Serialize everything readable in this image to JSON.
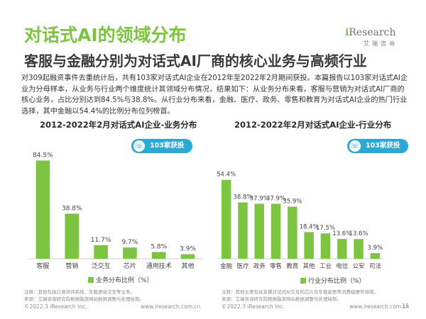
{
  "header": {
    "title": "对话式AI的领域分布",
    "subtitle": "客服与金融分别为对话式AI厂商的核心业务与高频行业",
    "logo_brand": "iResearch",
    "logo_sub": "艾瑞咨询"
  },
  "intro": "对309起融资事件去重统计后，共有103家对话式AI企业在2012年至2022年2月期间获投。本篇报告以103家对话式AI企业为分母样本，从业务与行业两个维度统计其领域分布情况，结果如下：从业务分布来看，客服与营销为对话式AI厂商的核心业务，占比分别达到84.5%与38.8%。从行业分布来看，金融、医疗、政务、零售和教育为对话式AI企业的热门行业选择，其中金融以54.4%的比例分布位列榜首。",
  "badge_label": "103家获投",
  "colors": {
    "accent": "#7dc540",
    "badge": "#2aa9d6"
  },
  "chart_data": [
    {
      "type": "bar",
      "title": "2012-2022年2月对话式AI企业-业务分布",
      "categories": [
        "客服",
        "营销",
        "泛交互",
        "芯片",
        "通用技术",
        "其他"
      ],
      "values": [
        84.5,
        38.8,
        11.7,
        9.7,
        5.8,
        3.9
      ],
      "value_labels": [
        "84.5%",
        "38.8%",
        "11.7%",
        "9.7%",
        "5.8%",
        "3.9%"
      ],
      "legend": "业务分布比例（%）",
      "ylim": [
        0,
        100
      ],
      "grid": false
    },
    {
      "type": "bar",
      "title": "2012-2022年2月对话式AI企业-行业分布",
      "categories": [
        "金融",
        "医疗",
        "政务",
        "零售",
        "教育",
        "其他",
        "工业",
        "电信",
        "公安",
        "司法"
      ],
      "values": [
        54.4,
        38.8,
        37.9,
        37.9,
        35.9,
        18.4,
        17.5,
        13.6,
        13.6,
        3.9
      ],
      "value_labels": [
        "54.4%",
        "38.8%",
        "37.9%",
        "37.9%",
        "35.9%",
        "18.4%",
        "17.5%",
        "13.6%",
        "13.6%",
        "3.9%"
      ],
      "legend": "行业分布比例（%）",
      "ylim": [
        0,
        65
      ],
      "grid": false
    }
  ],
  "notes": {
    "left": "注释：其他包括口语测评系统、车载语音交互等业务。\n来源：艾瑞咨询研究院根据融资网站数据调整与处理绘制。",
    "right": "注释：其他主要包括支撑对话式AI交互的芯片及车载家居等消费级硬件领域。\n来源：艾瑞咨询研究院根据融资网站数据调整与处理绘制。"
  },
  "footer": {
    "copyright_left": "©2022.3 iResearch Inc.",
    "url_left": "www.iresearch.com.cn",
    "copyright_right": "©2022.3 iResearch Inc.",
    "url_right": "www.iresearch.com.cn",
    "page_number": "11"
  }
}
